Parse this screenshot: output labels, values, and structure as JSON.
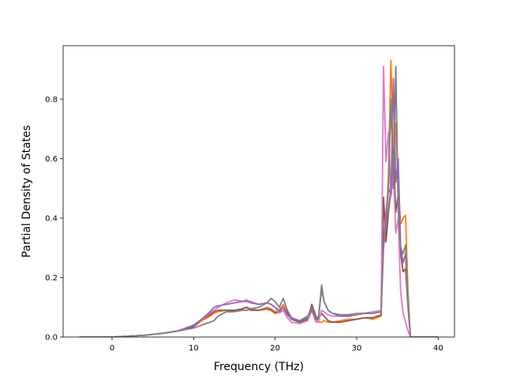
{
  "chart_data": {
    "type": "line",
    "title": "",
    "xlabel": "Frequency (THz)",
    "ylabel": "Partial Density of States",
    "xlim": [
      -6,
      42
    ],
    "ylim": [
      0,
      0.98
    ],
    "xticks": [
      0,
      10,
      20,
      30,
      40
    ],
    "yticks": [
      0.0,
      0.2,
      0.4,
      0.6,
      0.8
    ],
    "xtick_labels": [
      "0",
      "10",
      "20",
      "30",
      "40"
    ],
    "ytick_labels": [
      "0.0",
      "0.2",
      "0.4",
      "0.6",
      "0.8"
    ],
    "grid": false,
    "legend": "none",
    "x": [
      -4,
      0,
      2,
      4,
      6,
      8,
      10,
      11,
      12,
      12.5,
      13,
      14,
      15,
      16,
      16.5,
      17,
      18,
      19,
      19.5,
      20,
      20.5,
      21,
      21.5,
      22,
      23,
      24,
      24.5,
      25,
      25.3,
      25.7,
      26,
      26.5,
      27,
      28,
      29,
      30,
      31,
      32,
      33,
      33.3,
      33.6,
      33.9,
      34.2,
      34.5,
      34.8,
      35.1,
      35.4,
      35.7,
      36,
      36.3,
      36.6,
      37,
      40
    ],
    "series": [
      {
        "color": "#ff7f0e",
        "values": [
          0,
          0,
          0.003,
          0.006,
          0.012,
          0.02,
          0.035,
          0.055,
          0.07,
          0.08,
          0.085,
          0.09,
          0.09,
          0.095,
          0.1,
          0.095,
          0.09,
          0.1,
          0.095,
          0.085,
          0.09,
          0.11,
          0.08,
          0.06,
          0.05,
          0.07,
          0.1,
          0.06,
          0.05,
          0.05,
          0.055,
          0.05,
          0.05,
          0.055,
          0.06,
          0.06,
          0.065,
          0.06,
          0.07,
          0.45,
          0.35,
          0.55,
          0.93,
          0.62,
          0.72,
          0.5,
          0.38,
          0.4,
          0.41,
          0.15,
          0.0,
          0,
          0
        ]
      },
      {
        "color": "#8c564b",
        "values": [
          0,
          0,
          0.003,
          0.006,
          0.012,
          0.02,
          0.035,
          0.06,
          0.075,
          0.085,
          0.09,
          0.09,
          0.09,
          0.095,
          0.1,
          0.09,
          0.09,
          0.095,
          0.09,
          0.08,
          0.085,
          0.1,
          0.08,
          0.06,
          0.05,
          0.06,
          0.11,
          0.07,
          0.06,
          0.08,
          0.07,
          0.055,
          0.05,
          0.05,
          0.055,
          0.06,
          0.065,
          0.065,
          0.075,
          0.47,
          0.32,
          0.42,
          0.5,
          0.63,
          0.42,
          0.48,
          0.28,
          0.22,
          0.23,
          0.1,
          0.0,
          0,
          0
        ]
      },
      {
        "color": "#e377c2",
        "values": [
          0,
          0,
          0.003,
          0.006,
          0.012,
          0.02,
          0.04,
          0.06,
          0.08,
          0.09,
          0.1,
          0.115,
          0.125,
          0.12,
          0.125,
          0.12,
          0.11,
          0.115,
          0.11,
          0.1,
          0.08,
          0.09,
          0.065,
          0.05,
          0.045,
          0.055,
          0.09,
          0.05,
          0.05,
          0.09,
          0.085,
          0.075,
          0.07,
          0.07,
          0.075,
          0.08,
          0.08,
          0.085,
          0.09,
          0.91,
          0.59,
          0.69,
          0.47,
          0.55,
          0.35,
          0.4,
          0.15,
          0.08,
          0.05,
          0.02,
          0.0,
          0,
          0
        ]
      },
      {
        "color": "#9467bd",
        "values": [
          0,
          0,
          0.003,
          0.006,
          0.012,
          0.02,
          0.04,
          0.06,
          0.085,
          0.1,
          0.105,
          0.11,
          0.115,
          0.12,
          0.12,
          0.115,
          0.11,
          0.115,
          0.11,
          0.1,
          0.09,
          0.1,
          0.075,
          0.06,
          0.055,
          0.07,
          0.09,
          0.06,
          0.06,
          0.16,
          0.12,
          0.09,
          0.08,
          0.07,
          0.07,
          0.075,
          0.08,
          0.08,
          0.085,
          0.32,
          0.42,
          0.5,
          0.48,
          0.87,
          0.52,
          0.6,
          0.3,
          0.25,
          0.28,
          0.1,
          0.0,
          0,
          0
        ]
      },
      {
        "color": "#7f7f7f",
        "values": [
          0,
          0,
          0.003,
          0.006,
          0.012,
          0.02,
          0.03,
          0.04,
          0.05,
          0.055,
          0.07,
          0.085,
          0.085,
          0.09,
          0.09,
          0.095,
          0.1,
          0.115,
          0.13,
          0.12,
          0.1,
          0.13,
          0.09,
          0.065,
          0.055,
          0.065,
          0.1,
          0.06,
          0.06,
          0.175,
          0.12,
          0.09,
          0.08,
          0.075,
          0.075,
          0.075,
          0.08,
          0.08,
          0.085,
          0.3,
          0.38,
          0.5,
          0.8,
          0.5,
          0.91,
          0.42,
          0.3,
          0.28,
          0.31,
          0.12,
          0.0,
          0,
          0
        ]
      }
    ]
  }
}
